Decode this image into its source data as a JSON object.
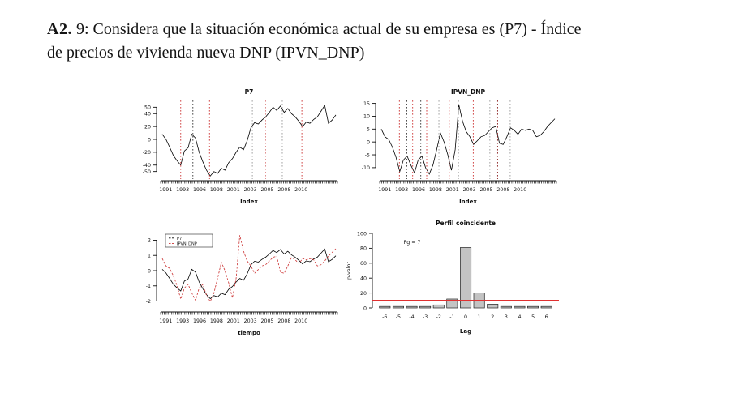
{
  "heading": {
    "numeral": "A2.",
    "line1": " 9: Considera que la situación económica actual de su empresa es (P7) - Índice",
    "line2": "de precios de vivienda nueva  DNP (IPVN_DNP)"
  },
  "colors": {
    "axis": "#111111",
    "red_dotted": "#cc3333",
    "light_red_dotted": "#dd8888",
    "dark_red_dotted": "#8b2222",
    "gray_dotted": "#999999",
    "black_dotted": "#333333",
    "significance_line": "#e03030",
    "bar_fill": "#c3c3c3",
    "bar_stroke": "#222222"
  },
  "chart_data": [
    {
      "id": "p7",
      "type": "line",
      "title": "P7",
      "xlabel": "Index",
      "ylabel": "",
      "ylim": [
        -58,
        58
      ],
      "yticks": [
        50,
        40,
        20,
        0,
        -20,
        -40,
        -50
      ],
      "xlabels": [
        "1991",
        "1993",
        "1996",
        "1998",
        "2001",
        "2003",
        "2005",
        "2008",
        "2010"
      ],
      "series": [
        {
          "name": "P7",
          "color": "#000000",
          "dash": "",
          "values": [
            8,
            0,
            -12,
            -25,
            -33,
            -40,
            -18,
            -13,
            8,
            2,
            -20,
            -35,
            -48,
            -57,
            -50,
            -53,
            -45,
            -48,
            -36,
            -30,
            -20,
            -12,
            -16,
            -2,
            18,
            26,
            24,
            30,
            35,
            42,
            50,
            45,
            52,
            42,
            48,
            40,
            35,
            28,
            20,
            27,
            25,
            31,
            35,
            44,
            53,
            25,
            30,
            38
          ]
        }
      ],
      "vlines": [
        {
          "i": 5.0,
          "color": "#cc3333"
        },
        {
          "i": 8.3,
          "color": "#333333"
        },
        {
          "i": 12.8,
          "color": "#cc3333"
        },
        {
          "i": 24.4,
          "color": "#999999"
        },
        {
          "i": 28.0,
          "color": "#dd8888"
        },
        {
          "i": 32.5,
          "color": "#999999"
        },
        {
          "i": 37.8,
          "color": "#cc3333"
        }
      ]
    },
    {
      "id": "ipvn_dnp",
      "type": "line",
      "title": "IPVN_DNP",
      "xlabel": "Index",
      "ylabel": "",
      "ylim": [
        -13.5,
        15.5
      ],
      "yticks": [
        15,
        10,
        5,
        0,
        -5,
        -10
      ],
      "xlabels": [
        "1991",
        "1993",
        "1996",
        "1998",
        "2001",
        "2003",
        "2005",
        "2008",
        "2010"
      ],
      "series": [
        {
          "name": "IPVN_DNP",
          "color": "#000000",
          "dash": "",
          "values": [
            5,
            2,
            1,
            -2,
            -6,
            -11.5,
            -7,
            -5.5,
            -9,
            -12,
            -7,
            -5.5,
            -10,
            -12.5,
            -9,
            -3,
            3.5,
            0,
            -5,
            -11,
            -3,
            14.5,
            8,
            4,
            2,
            -1,
            0.5,
            2,
            2.5,
            4,
            5.5,
            6,
            -0.5,
            -1,
            2,
            5.5,
            4.5,
            3,
            5,
            4.5,
            5,
            4.5,
            2,
            2.5,
            4,
            6,
            7.5,
            9
          ]
        }
      ],
      "vlines": [
        {
          "i": 4.9,
          "color": "#cc3333"
        },
        {
          "i": 6.9,
          "color": "#333333"
        },
        {
          "i": 8.5,
          "color": "#cc3333"
        },
        {
          "i": 10.7,
          "color": "#333333"
        },
        {
          "i": 12.3,
          "color": "#cc3333"
        },
        {
          "i": 15.6,
          "color": "#999999"
        },
        {
          "i": 18.4,
          "color": "#cc3333"
        },
        {
          "i": 20.9,
          "color": "#999999"
        },
        {
          "i": 24.9,
          "color": "#cc3333"
        },
        {
          "i": 29.4,
          "color": "#999999"
        },
        {
          "i": 31.5,
          "color": "#8b2222"
        },
        {
          "i": 34.9,
          "color": "#999999"
        }
      ]
    },
    {
      "id": "standardized_overlay",
      "type": "line",
      "title": "",
      "xlabel": "tiempo",
      "ylabel": "",
      "standardize": true,
      "ylim": [
        -2.45,
        2.45
      ],
      "yticks": [
        2,
        1,
        0,
        -1,
        -2
      ],
      "xlabels": [
        "1991",
        "1993",
        "1996",
        "1998",
        "2001",
        "2003",
        "2005",
        "2008",
        "2010"
      ],
      "legend": [
        "P7",
        "IPVN_DNP"
      ],
      "series": [
        {
          "name": "P7",
          "color": "#000000",
          "dash": "",
          "values": [
            8,
            0,
            -12,
            -25,
            -33,
            -40,
            -18,
            -13,
            8,
            2,
            -20,
            -35,
            -48,
            -57,
            -50,
            -53,
            -45,
            -48,
            -36,
            -30,
            -20,
            -12,
            -16,
            -2,
            18,
            26,
            24,
            30,
            35,
            42,
            50,
            45,
            52,
            42,
            48,
            40,
            35,
            28,
            20,
            27,
            25,
            31,
            35,
            44,
            53,
            25,
            30,
            38
          ]
        },
        {
          "name": "IPVN_DNP",
          "color": "#cc3333",
          "dash": "2.6,1.8",
          "values": [
            5,
            2,
            1,
            -2,
            -6,
            -11.5,
            -7,
            -5.5,
            -9,
            -12,
            -7,
            -5.5,
            -10,
            -12.5,
            -9,
            -3,
            3.5,
            0,
            -5,
            -11,
            -3,
            14.5,
            8,
            4,
            2,
            -1,
            0.5,
            2,
            2.5,
            4,
            5.5,
            6,
            -0.5,
            -1,
            2,
            5.5,
            4.5,
            3,
            5,
            4.5,
            5,
            4.5,
            2,
            2.5,
            4,
            6,
            7.5,
            9
          ]
        }
      ],
      "vlines": []
    },
    {
      "id": "perfil_coincidente",
      "type": "bar",
      "title": "Perfil coincidente",
      "xlabel": "Lag",
      "ylabel": "p-valor",
      "annotation": "Pg = 7",
      "ylim": [
        0,
        100
      ],
      "yticks": [
        0,
        20,
        40,
        60,
        80,
        100
      ],
      "categories": [
        "-6",
        "-5",
        "-4",
        "-3",
        "-2",
        "-1",
        "0",
        "1",
        "2",
        "3",
        "4",
        "5",
        "6"
      ],
      "values": [
        2,
        2,
        2,
        2,
        4,
        12,
        81,
        20,
        5,
        2,
        2,
        2,
        2
      ],
      "hline": {
        "y": 10,
        "color": "#e03030"
      },
      "bar_fill": "#c3c3c3",
      "bar_stroke": "#222222"
    }
  ]
}
